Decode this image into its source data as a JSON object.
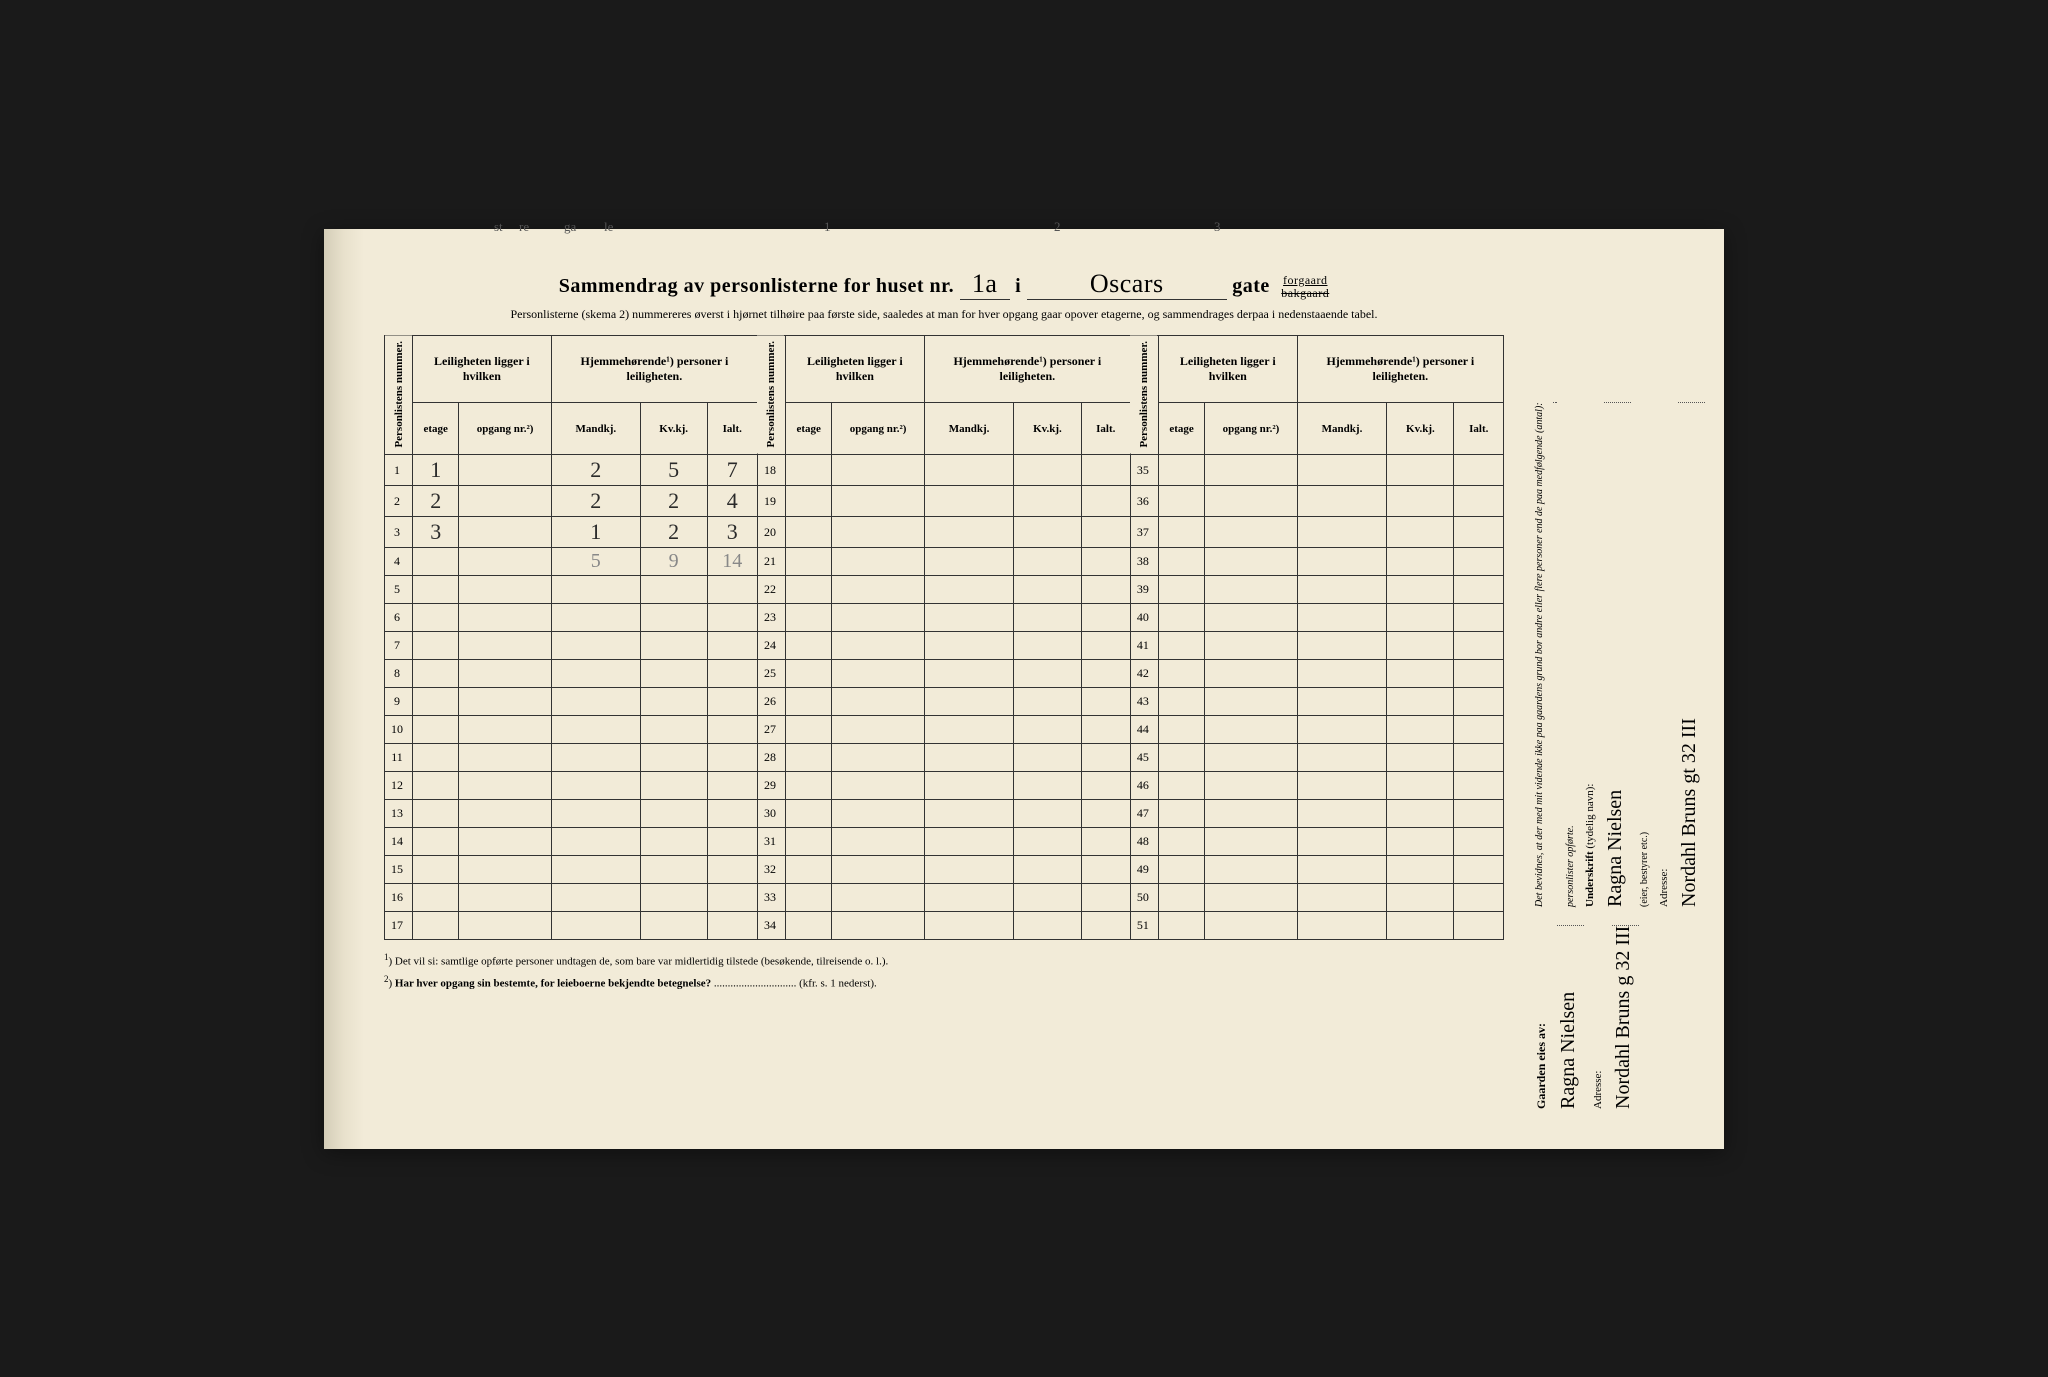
{
  "title": {
    "prefix": "Sammendrag av personlisterne for huset nr.",
    "houseNr": "1a",
    "mid": "i",
    "street": "Oscars",
    "suffix": "gate",
    "forgaard": "forgaard",
    "bakgaard": "bakgaard"
  },
  "subtitle": "Personlisterne (skema 2) nummereres øverst i hjørnet tilhøire paa første side, saaledes at man for hver opgang gaar opover etagerne, og sammendrages derpaa i nedenstaaende tabel.",
  "headers": {
    "personlistens": "Personlistens nummer.",
    "leiligheten": "Leiligheten ligger i hvilken",
    "hjemme": "Hjemmehørende¹) personer i leiligheten.",
    "etage": "etage",
    "opgang": "opgang nr.²)",
    "mandkj": "Mandkj.",
    "kvkj": "Kv.kj.",
    "ialt": "Ialt."
  },
  "rows": [
    {
      "n": "1",
      "etage": "1",
      "opgang": "",
      "m": "2",
      "k": "5",
      "i": "7"
    },
    {
      "n": "2",
      "etage": "2",
      "opgang": "",
      "m": "2",
      "k": "2",
      "i": "4"
    },
    {
      "n": "3",
      "etage": "3",
      "opgang": "",
      "m": "1",
      "k": "2",
      "i": "3"
    },
    {
      "n": "4",
      "etage": "",
      "opgang": "",
      "m": "5",
      "k": "9",
      "i": "14",
      "faint": true
    },
    {
      "n": "5"
    },
    {
      "n": "6"
    },
    {
      "n": "7"
    },
    {
      "n": "8"
    },
    {
      "n": "9"
    },
    {
      "n": "10"
    },
    {
      "n": "11"
    },
    {
      "n": "12"
    },
    {
      "n": "13"
    },
    {
      "n": "14"
    },
    {
      "n": "15"
    },
    {
      "n": "16"
    },
    {
      "n": "17"
    }
  ],
  "col2Start": 18,
  "col2End": 34,
  "col3Start": 35,
  "col3End": 51,
  "footnotes": {
    "f1": "Det vil si: samtlige opførte personer undtagen de, som bare var midlertidig tilstede (besøkende, tilreisende o. l.).",
    "f2": "Har hver opgang sin bestemte, for leieboerne bekjendte betegnelse?",
    "f2ref": "(kfr. s. 1 nederst).",
    "f2line": ".............................."
  },
  "signature": {
    "gaardenLabel": "Gaarden eies av:",
    "owner": "Ragna Nielsen",
    "adresseLabel": "Adresse:",
    "ownerAddr": "Nordahl Bruns g 32 III",
    "bevidnes": "Det bevidnes, at der med mit vidende ikke paa gaardens grund bor andre eller flere personer end de paa medfølgende (antal):",
    "personlister": "personlister opførte.",
    "underskriftLabel": "Underskrift",
    "tydelig": "(tydelig navn):",
    "signer": "Ragna Nielsen",
    "eierNote": "(eier, bestyrer etc.)",
    "signerAddr": "Nordahl Bruns gt 32 III"
  },
  "colors": {
    "paper": "#f2ebd8",
    "ink": "#2a2a2a",
    "border": "#333333",
    "faint": "#888888"
  }
}
